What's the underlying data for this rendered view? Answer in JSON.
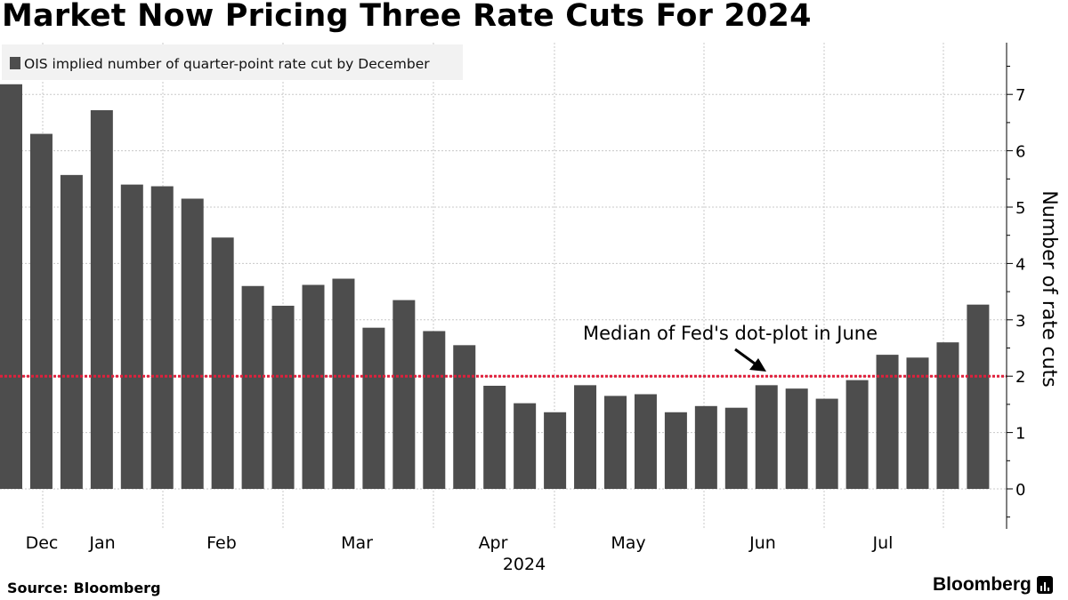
{
  "title": "Market Now Pricing Three Rate Cuts For 2024",
  "source_label": "Source:",
  "source_value": "Bloomberg",
  "brand": "Bloomberg",
  "colors": {
    "bar": "#4d4d4d",
    "reference_line": "#e0203c",
    "legend_bg": "#f2f2f2",
    "grid": "#c8c8c8"
  },
  "chart_data": {
    "type": "bar",
    "series": [
      {
        "name": "OIS implied number of quarter-point rate cut by December",
        "values": [
          7.18,
          6.3,
          5.57,
          6.72,
          5.4,
          5.37,
          5.15,
          4.46,
          3.6,
          3.25,
          3.62,
          3.73,
          2.86,
          3.35,
          2.8,
          2.55,
          1.83,
          1.52,
          1.36,
          1.84,
          1.65,
          1.68,
          1.36,
          1.47,
          1.44,
          1.84,
          1.78,
          1.6,
          1.93,
          2.38,
          2.33,
          2.6,
          3.27
        ]
      }
    ],
    "x_labels": [
      "Dec",
      "Jan",
      "Feb",
      "Mar",
      "Apr",
      "May",
      "Jun",
      "Jul"
    ],
    "x_year_label": "2024",
    "ylabel": "Number of rate cuts",
    "yticks": [
      0,
      1,
      2,
      3,
      4,
      5,
      6,
      7
    ],
    "ylim": [
      -0.7,
      7.8
    ],
    "reference_line": {
      "value": 2,
      "label": "Median of Fed's dot-plot in June"
    },
    "legend_position": "top-left",
    "grid": true
  }
}
